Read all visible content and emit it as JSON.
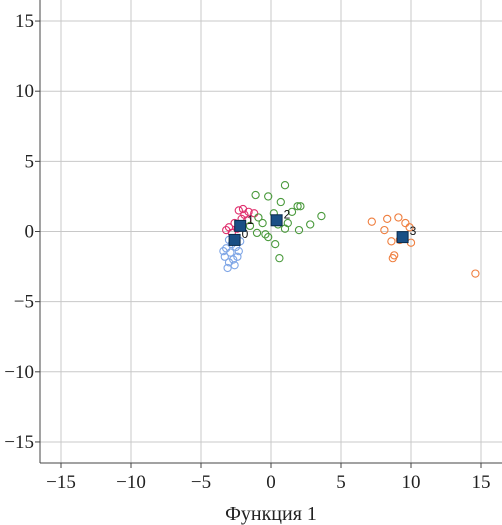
{
  "chart_data": {
    "type": "scatter",
    "title": "",
    "xlabel": "Функция 1",
    "ylabel": "",
    "xlim": [
      -16.5,
      16.5
    ],
    "ylim": [
      -16.5,
      16.5
    ],
    "x_ticks": [
      -15,
      -10,
      -5,
      0,
      5,
      10,
      15
    ],
    "y_ticks": [
      15,
      10,
      5,
      0,
      -5,
      -10,
      -15
    ],
    "x_tick_labels": [
      "−15",
      "−10",
      "−5",
      "0",
      "5",
      "10",
      "15"
    ],
    "y_tick_labels": [
      "15",
      "10",
      "5",
      "0",
      "−5",
      "−10",
      "−15"
    ],
    "grid": true,
    "marker": "open-circle",
    "series": [
      {
        "color": "#7fa6e6",
        "points": [
          [
            -3.1,
            -2.6
          ],
          [
            -3.0,
            -2.2
          ],
          [
            -3.3,
            -1.8
          ],
          [
            -2.9,
            -1.5
          ],
          [
            -2.6,
            -2.4
          ],
          [
            -3.2,
            -1.2
          ],
          [
            -2.8,
            -0.9
          ],
          [
            -2.4,
            -1.8
          ],
          [
            -3.0,
            -0.6
          ],
          [
            -2.5,
            -1.1
          ],
          [
            -2.2,
            -0.7
          ],
          [
            -2.7,
            -2.0
          ],
          [
            -3.4,
            -1.4
          ],
          [
            -2.3,
            -1.4
          ]
        ]
      },
      {
        "color": "#e0306e",
        "points": [
          [
            -3.0,
            0.3
          ],
          [
            -2.6,
            0.6
          ],
          [
            -2.3,
            1.5
          ],
          [
            -1.9,
            1.2
          ],
          [
            -2.8,
            -0.1
          ],
          [
            -2.1,
            0.9
          ],
          [
            -1.6,
            1.4
          ],
          [
            -3.2,
            0.1
          ],
          [
            -2.4,
            0.2
          ],
          [
            -1.2,
            1.3
          ],
          [
            -1.7,
            0.8
          ],
          [
            -2.0,
            1.6
          ]
        ]
      },
      {
        "color": "#4a9a3c",
        "points": [
          [
            -1.1,
            2.6
          ],
          [
            -0.2,
            2.5
          ],
          [
            1.0,
            3.3
          ],
          [
            0.7,
            2.1
          ],
          [
            1.9,
            1.8
          ],
          [
            2.1,
            1.8
          ],
          [
            1.5,
            1.4
          ],
          [
            3.6,
            1.1
          ],
          [
            2.8,
            0.5
          ],
          [
            2.0,
            0.1
          ],
          [
            1.0,
            0.2
          ],
          [
            -0.4,
            -0.2
          ],
          [
            0.3,
            -0.9
          ],
          [
            0.6,
            -1.9
          ],
          [
            -0.6,
            0.6
          ],
          [
            0.2,
            1.3
          ],
          [
            -0.9,
            1.0
          ],
          [
            -1.5,
            0.4
          ],
          [
            0.5,
            0.5
          ],
          [
            -0.2,
            -0.4
          ],
          [
            1.2,
            0.6
          ],
          [
            -1.0,
            -0.1
          ]
        ]
      },
      {
        "color": "#ef7e3e",
        "points": [
          [
            7.2,
            0.7
          ],
          [
            8.1,
            0.1
          ],
          [
            8.3,
            0.9
          ],
          [
            9.1,
            1.0
          ],
          [
            9.6,
            0.6
          ],
          [
            8.6,
            -0.7
          ],
          [
            9.2,
            -0.6
          ],
          [
            10.0,
            -0.8
          ],
          [
            8.8,
            -1.7
          ],
          [
            8.7,
            -1.9
          ],
          [
            9.9,
            0.3
          ],
          [
            14.6,
            -3.0
          ]
        ]
      }
    ],
    "centroids": [
      {
        "label": "0",
        "x": -2.6,
        "y": -0.6
      },
      {
        "label": "1",
        "x": -2.2,
        "y": 0.4
      },
      {
        "label": "2",
        "x": 0.4,
        "y": 0.8
      },
      {
        "label": "3",
        "x": 9.4,
        "y": -0.4
      }
    ],
    "centroid_color": "#1a4f85"
  }
}
